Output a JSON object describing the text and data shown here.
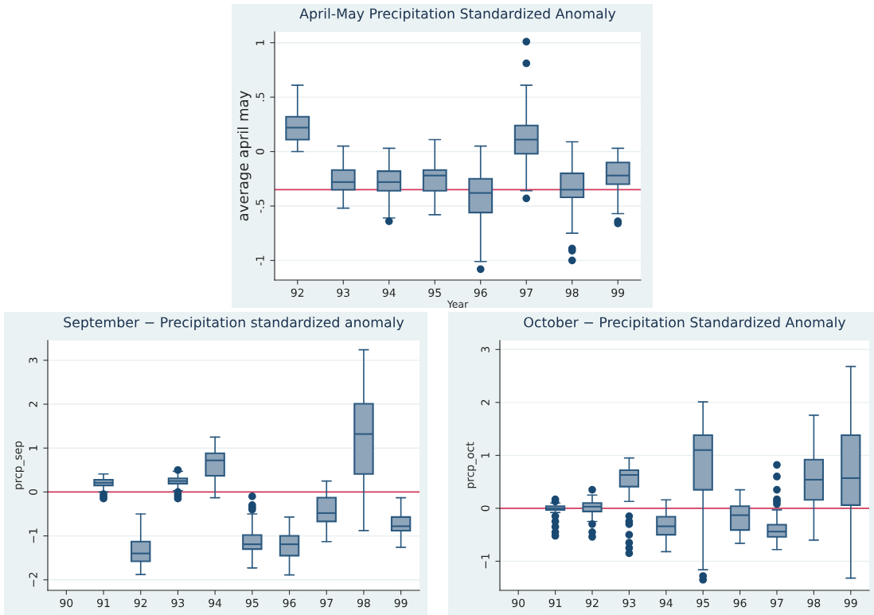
{
  "chart_data": [
    {
      "type": "box",
      "title": "April-May Precipitation Standardized Anomaly",
      "xlabel": "Year",
      "ylabel": "average april may",
      "categories": [
        "92",
        "93",
        "94",
        "95",
        "96",
        "97",
        "98",
        "99"
      ],
      "series": [
        {
          "color": "#8fa5ba",
          "boxes": [
            {
              "low": 0,
              "q1": 0.11,
              "median": 0.22,
              "q3": 0.32,
              "high": 0.61
            },
            {
              "low": -0.52,
              "q1": -0.35,
              "median": -0.28,
              "q3": -0.17,
              "high": 0.05
            },
            {
              "low": -0.61,
              "q1": -0.36,
              "median": -0.28,
              "q3": -0.18,
              "high": 0.03,
              "outliers": [
                -0.64
              ]
            },
            {
              "low": -0.58,
              "q1": -0.36,
              "median": -0.22,
              "q3": -0.17,
              "high": 0.11
            },
            {
              "low": -1.01,
              "q1": -0.56,
              "median": -0.38,
              "q3": -0.25,
              "high": 0.05,
              "outliers": [
                -1.08
              ]
            },
            {
              "low": -0.36,
              "q1": -0.02,
              "median": 0.11,
              "q3": 0.24,
              "high": 0.61,
              "outliers": [
                1.01,
                0.81,
                -0.43
              ]
            },
            {
              "low": -0.75,
              "q1": -0.42,
              "median": -0.35,
              "q3": -0.2,
              "high": 0.09,
              "outliers": [
                -0.89,
                -0.91,
                -1.0
              ]
            },
            {
              "low": -0.57,
              "q1": -0.3,
              "median": -0.22,
              "q3": -0.1,
              "high": 0.03,
              "outliers": [
                -0.64,
                -0.66
              ]
            }
          ]
        }
      ],
      "ylim": [
        -1.18,
        1.1
      ],
      "yticks": [
        {
          "value": -1,
          "label": "-1"
        },
        {
          "value": -0.5,
          "label": "-.5"
        },
        0,
        {
          "value": 0.5,
          "label": ".5"
        },
        1
      ],
      "grid": "y",
      "ref_lines": [
        {
          "axis": "y",
          "value": -0.35,
          "color": "#d23a5c"
        }
      ]
    },
    {
      "type": "box",
      "title": "September − Precipitation standardized anomaly",
      "ylabel": "prcp_sep",
      "categories": [
        "90",
        "91",
        "92",
        "93",
        "94",
        "95",
        "96",
        "97",
        "98",
        "99"
      ],
      "series": [
        {
          "color": "#8fa5ba",
          "boxes": [
            null,
            {
              "low": 0.0,
              "q1": 0.15,
              "median": 0.21,
              "q3": 0.28,
              "high": 0.41,
              "outliers": [
                -0.05,
                -0.1,
                -0.15
              ]
            },
            {
              "low": -1.88,
              "q1": -1.58,
              "median": -1.4,
              "q3": -1.13,
              "high": -0.5
            },
            {
              "low": 0.03,
              "q1": 0.19,
              "median": 0.25,
              "q3": 0.31,
              "high": 0.47,
              "outliers": [
                0.5,
                0.0,
                -0.05,
                -0.1,
                -0.15
              ]
            },
            {
              "low": -0.13,
              "q1": 0.37,
              "median": 0.72,
              "q3": 0.88,
              "high": 1.25
            },
            {
              "low": -1.73,
              "q1": -1.3,
              "median": -1.19,
              "q3": -0.98,
              "high": -0.5,
              "outliers": [
                -0.1,
                -0.3,
                -0.35,
                -0.4
              ]
            },
            {
              "low": -1.89,
              "q1": -1.45,
              "median": -1.19,
              "q3": -1.0,
              "high": -0.57
            },
            {
              "low": -1.13,
              "q1": -0.67,
              "median": -0.48,
              "q3": -0.13,
              "high": 0.25
            },
            {
              "low": -0.88,
              "q1": 0.41,
              "median": 1.32,
              "q3": 2.01,
              "high": 3.24
            },
            {
              "low": -1.26,
              "q1": -0.88,
              "median": -0.78,
              "q3": -0.57,
              "high": -0.13
            }
          ]
        }
      ],
      "ylim": [
        -2.24,
        3.45
      ],
      "yticks": [
        {
          "value": -2,
          "label": "−2"
        },
        {
          "value": -1,
          "label": "−1"
        },
        0,
        1,
        2,
        3
      ],
      "grid": "y",
      "ref_lines": [
        {
          "axis": "y",
          "value": 0,
          "color": "#d23a5c"
        }
      ]
    },
    {
      "type": "box",
      "title": "October − Precipitation Standardized Anomaly",
      "ylabel": "prcp_oct",
      "categories": [
        "90",
        "91",
        "92",
        "93",
        "94",
        "95",
        "96",
        "97",
        "98",
        "99"
      ],
      "series": [
        {
          "color": "#8fa5ba",
          "boxes": [
            null,
            {
              "low": -0.08,
              "q1": -0.03,
              "median": 0,
              "q3": 0.04,
              "high": 0.1,
              "outliers": [
                0.17,
                0.13,
                -0.15,
                -0.25,
                -0.35,
                -0.45,
                -0.52
              ]
            },
            {
              "low": -0.25,
              "q1": -0.06,
              "median": 0.03,
              "q3": 0.1,
              "high": 0.25,
              "outliers": [
                0.35,
                -0.3,
                -0.45,
                -0.54
              ]
            },
            {
              "low": 0.13,
              "q1": 0.41,
              "median": 0.63,
              "q3": 0.72,
              "high": 0.95,
              "outliers": [
                -0.15,
                -0.25,
                -0.3,
                -0.5,
                -0.65,
                -0.75,
                -0.85
              ]
            },
            {
              "low": -0.82,
              "q1": -0.5,
              "median": -0.34,
              "q3": -0.16,
              "high": 0.16
            },
            {
              "low": -1.16,
              "q1": 0.35,
              "median": 1.1,
              "q3": 1.38,
              "high": 2.01,
              "outliers": [
                -1.28,
                -1.35
              ]
            },
            {
              "low": -0.66,
              "q1": -0.41,
              "median": -0.13,
              "q3": 0.04,
              "high": 0.35
            },
            {
              "low": -0.78,
              "q1": -0.54,
              "median": -0.44,
              "q3": -0.31,
              "high": -0.03,
              "outliers": [
                0.82,
                0.6,
                0.35,
                0.17,
                0.13,
                0.08
              ]
            },
            {
              "low": -0.6,
              "q1": 0.16,
              "median": 0.54,
              "q3": 0.92,
              "high": 1.76
            },
            {
              "low": -1.32,
              "q1": 0.06,
              "median": 0.57,
              "q3": 1.38,
              "high": 2.68
            }
          ]
        }
      ],
      "ylim": [
        -1.55,
        3.17
      ],
      "yticks": [
        {
          "value": -1,
          "label": "−1"
        },
        0,
        1,
        2,
        3
      ],
      "grid": "y",
      "ref_lines": [
        {
          "axis": "y",
          "value": 0,
          "color": "#d23a5c"
        }
      ]
    }
  ]
}
